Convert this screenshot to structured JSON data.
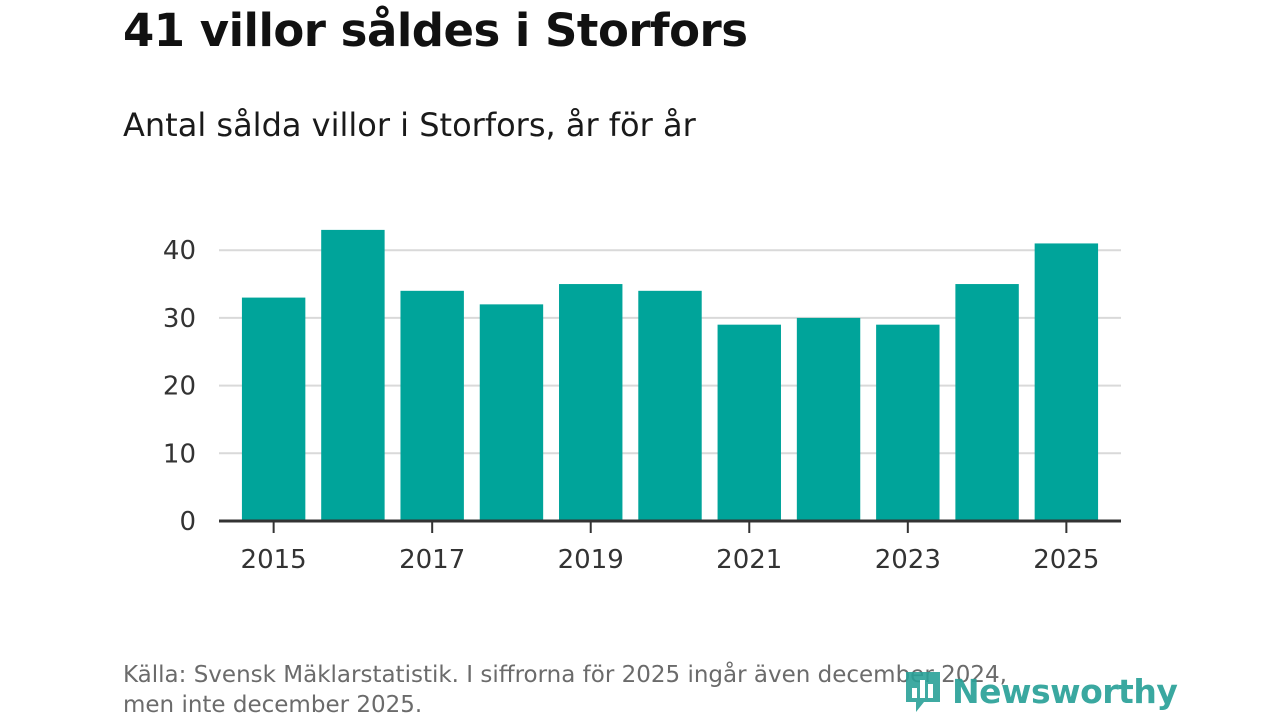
{
  "title": "41 villor såldes i Storfors",
  "subtitle": "Antal sålda villor i Storfors, år för år",
  "source": {
    "line1": "Källa: Svensk Mäklarstatistik. I siffrorna för 2025 ingår även december 2024,",
    "line2": "men inte december 2025."
  },
  "logo": {
    "text": "Newsworthy",
    "icon": "bar-chart-logo-icon"
  },
  "colors": {
    "bar": "#00a49a",
    "grid": "#d9d9d9",
    "axis": "#333333",
    "logo": "#2aa198"
  },
  "chart_data": {
    "type": "bar",
    "title": "41 villor såldes i Storfors",
    "subtitle": "Antal sålda villor i Storfors, år för år",
    "xlabel": "",
    "ylabel": "",
    "categories": [
      "2015",
      "2016",
      "2017",
      "2018",
      "2019",
      "2020",
      "2021",
      "2022",
      "2023",
      "2024",
      "2025"
    ],
    "values": [
      33,
      43,
      34,
      32,
      35,
      34,
      29,
      30,
      29,
      35,
      41
    ],
    "x_tick_labels": [
      "2015",
      "2017",
      "2019",
      "2021",
      "2023",
      "2025"
    ],
    "y_ticks": [
      0,
      10,
      20,
      30,
      40
    ],
    "ylim": [
      0,
      43
    ],
    "grid": true,
    "legend": "none"
  }
}
